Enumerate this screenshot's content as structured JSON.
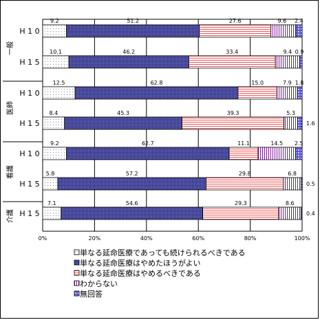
{
  "chart_data": {
    "type": "bar",
    "stacked": true,
    "orientation": "horizontal",
    "percent": true,
    "groups": [
      {
        "label": "一般",
        "rows": [
          0,
          1
        ]
      },
      {
        "label": "医師",
        "rows": [
          2,
          3
        ]
      },
      {
        "label": "看護",
        "rows": [
          4,
          5
        ]
      },
      {
        "label": "介護",
        "rows": [
          6
        ]
      }
    ],
    "categories": [
      "H10",
      "H15",
      "H10",
      "H15",
      "H10",
      "H15",
      "H15"
    ],
    "series": [
      {
        "name": "単なる延命医療であっても続けられるべきである",
        "pattern": "dots",
        "values": [
          9.2,
          10.1,
          12.5,
          8.4,
          9.2,
          5.8,
          7.1
        ]
      },
      {
        "name": "単なる延命医療はやめたほうがよい",
        "pattern": "dense",
        "values": [
          51.2,
          46.2,
          62.8,
          45.3,
          62.7,
          57.2,
          54.6
        ]
      },
      {
        "name": "単なる延命医療はやめるべきである",
        "pattern": "hlines",
        "values": [
          27.6,
          33.4,
          15.0,
          39.3,
          11.1,
          29.8,
          29.3
        ]
      },
      {
        "name": "わからない",
        "pattern": "vlines",
        "values": [
          9.6,
          9.4,
          7.9,
          5.3,
          14.5,
          6.8,
          8.6
        ]
      },
      {
        "name": "無回答",
        "pattern": "diamond",
        "values": [
          2.4,
          0.9,
          1.8,
          1.6,
          2.5,
          0.5,
          0.4
        ]
      }
    ],
    "labels": [
      [
        "9.2",
        "51.2",
        "27.6",
        "9.6",
        "2.4"
      ],
      [
        "10.1",
        "46.2",
        "33.4",
        "9.4",
        "0.9"
      ],
      [
        "12.5",
        "62.8",
        "15.0",
        "7.9",
        "1.8"
      ],
      [
        "8.4",
        "45.3",
        "39.3",
        "5.3",
        "1.6"
      ],
      [
        "9.2",
        "62.7",
        "11.1",
        "14.5",
        "2.5"
      ],
      [
        "5.8",
        "57.2",
        "29.8",
        "6.8",
        "0.5"
      ],
      [
        "7.1",
        "54.6",
        "29.3",
        "8.6",
        "0.4"
      ]
    ],
    "xlim": [
      0,
      100
    ],
    "xticks": [
      "0%",
      "20%",
      "40%",
      "60%",
      "80%",
      "100%"
    ],
    "grid": true,
    "legend_position": "bottom"
  }
}
